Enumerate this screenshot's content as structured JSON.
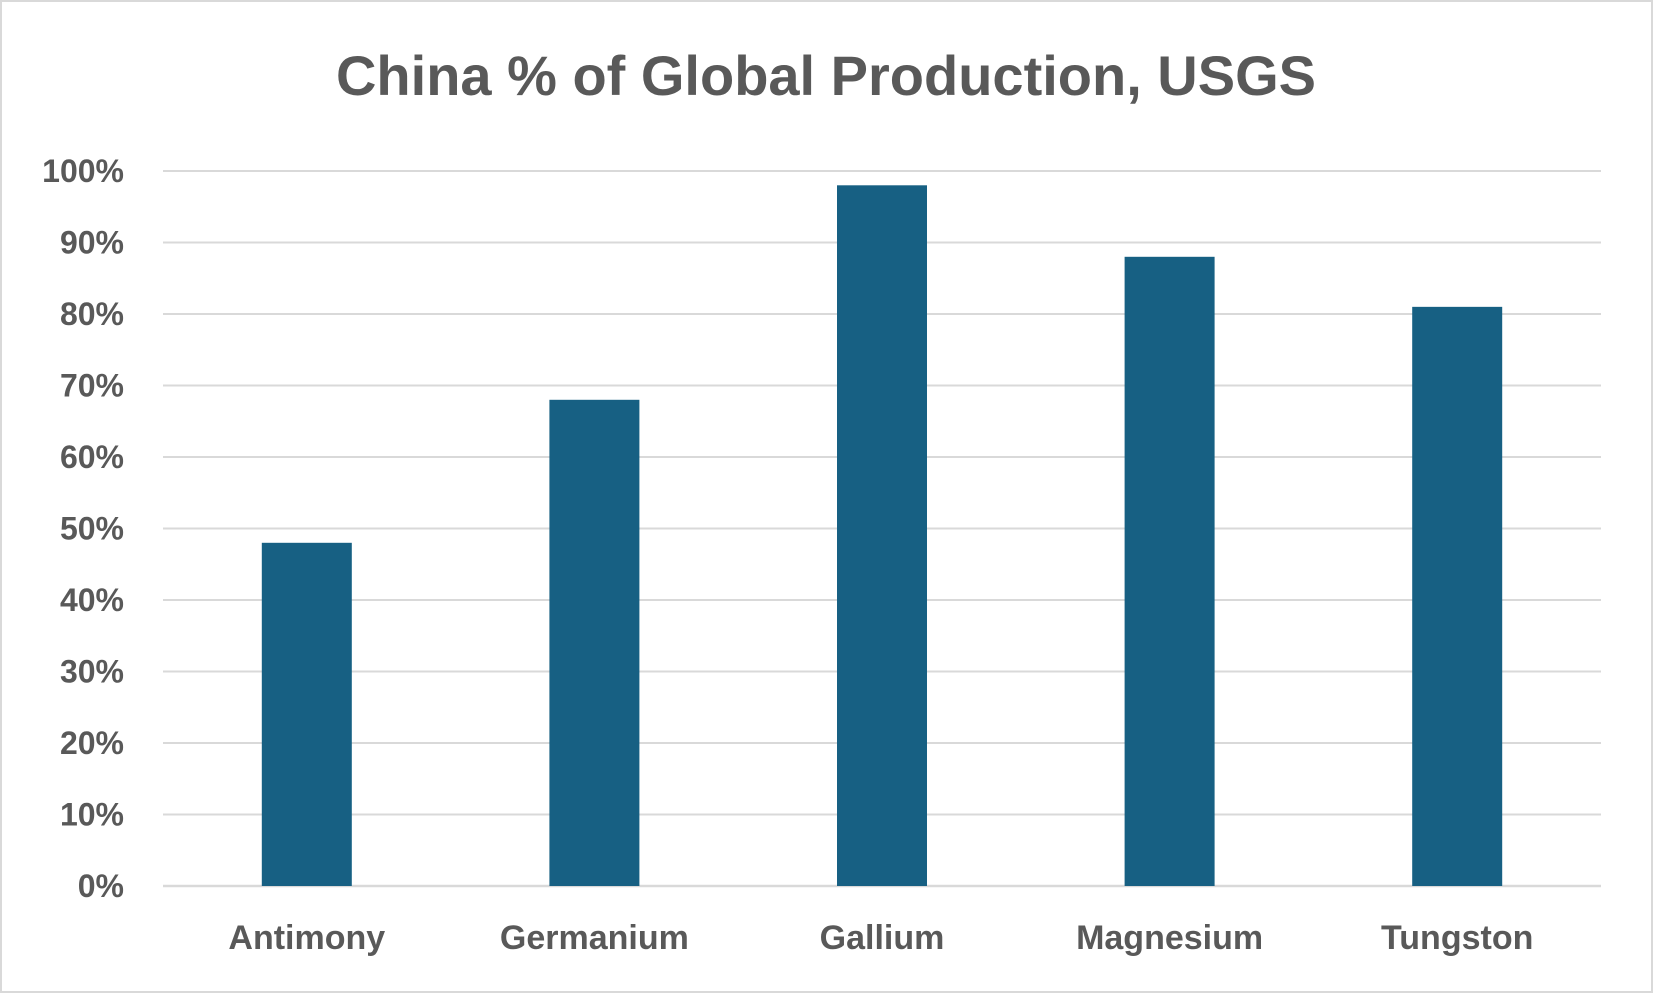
{
  "chart_data": {
    "type": "bar",
    "title": "China % of Global Production, USGS",
    "categories": [
      "Antimony",
      "Germanium",
      "Gallium",
      "Magnesium",
      "Tungston"
    ],
    "series": [
      {
        "values": [
          48,
          68,
          98,
          88,
          81
        ]
      }
    ],
    "y_ticks": [
      "0%",
      "10%",
      "20%",
      "30%",
      "40%",
      "50%",
      "60%",
      "70%",
      "80%",
      "90%",
      "100%"
    ],
    "ylim": [
      0,
      100
    ],
    "xlabel": "",
    "ylabel": "",
    "grid": true,
    "legend": "none",
    "colors": {
      "bar": "#176083",
      "gridline": "#d9d9d9",
      "text": "#595959",
      "border": "#d9d9d9"
    }
  }
}
